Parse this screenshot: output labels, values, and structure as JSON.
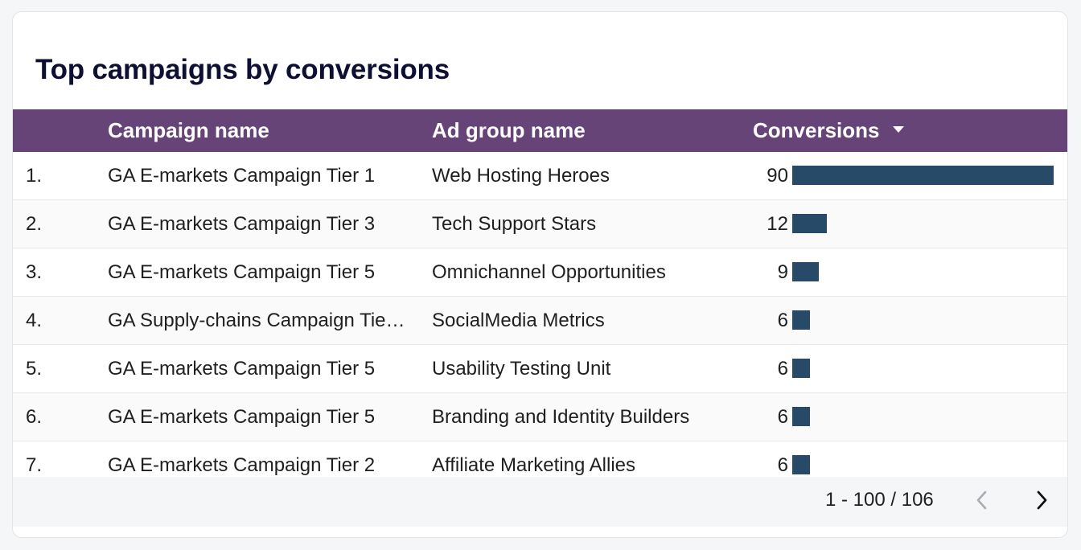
{
  "title": "Top campaigns by conversions",
  "columns": {
    "campaign": "Campaign name",
    "ad_group": "Ad group name",
    "conversions": "Conversions"
  },
  "sort": {
    "column": "conversions",
    "direction": "descending",
    "icon": "sort-descending-icon"
  },
  "colors": {
    "header_bg": "#674478",
    "bar": "#264a68",
    "title": "#0d1033"
  },
  "max_conversions": 90,
  "rows": [
    {
      "index": "1.",
      "campaign": "GA E-markets Campaign Tier 1",
      "ad_group": "Web Hosting Heroes",
      "conversions": 90
    },
    {
      "index": "2.",
      "campaign": "GA E-markets Campaign Tier 3",
      "ad_group": "Tech Support Stars",
      "conversions": 12
    },
    {
      "index": "3.",
      "campaign": "GA E-markets Campaign Tier 5",
      "ad_group": "Omnichannel Opportunities",
      "conversions": 9
    },
    {
      "index": "4.",
      "campaign": "GA Supply-chains Campaign Tie…",
      "ad_group": "SocialMedia Metrics",
      "conversions": 6
    },
    {
      "index": "5.",
      "campaign": "GA E-markets Campaign Tier 5",
      "ad_group": "Usability Testing Unit",
      "conversions": 6
    },
    {
      "index": "6.",
      "campaign": "GA E-markets Campaign Tier 5",
      "ad_group": "Branding and Identity Builders",
      "conversions": 6
    },
    {
      "index": "7.",
      "campaign": "GA E-markets Campaign Tier 2",
      "ad_group": "Affiliate Marketing Allies",
      "conversions": 6
    }
  ],
  "pagination": {
    "range": "1 - 100 / 106",
    "prev_icon": "chevron-left-icon",
    "next_icon": "chevron-right-icon",
    "prev_enabled": false,
    "next_enabled": true
  }
}
